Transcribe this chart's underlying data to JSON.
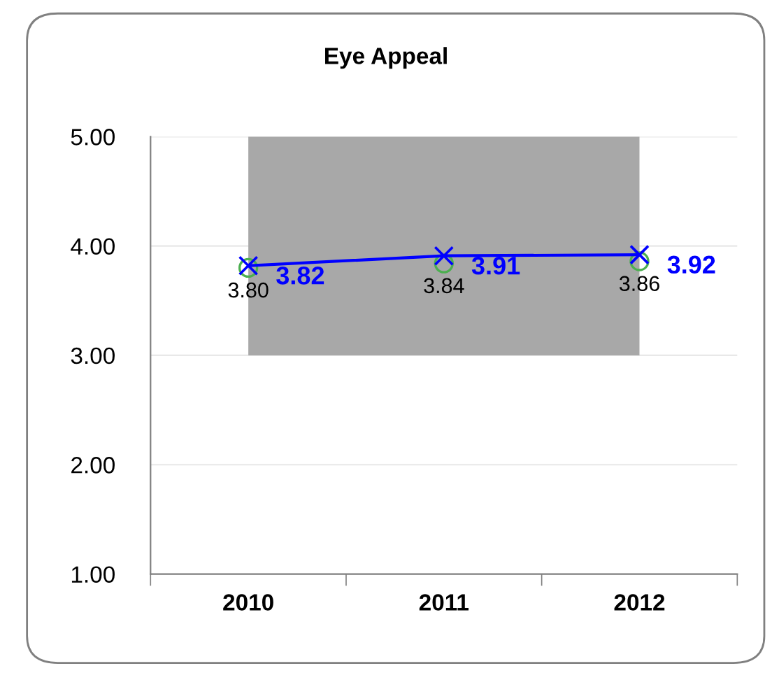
{
  "chart_data": {
    "type": "line",
    "title": "Eye Appeal",
    "categories": [
      "2010",
      "2011",
      "2012"
    ],
    "series": [
      {
        "color": "#0000ff",
        "values": [
          3.82,
          3.91,
          3.92
        ],
        "marker": "cross",
        "value_labels": [
          "3.82",
          "3.91",
          "3.92"
        ]
      },
      {
        "type": "scatter",
        "color": "#4caf50",
        "values": [
          3.8,
          3.84,
          3.86
        ],
        "marker": "circle",
        "value_labels": [
          "3.80",
          "3.84",
          "3.86"
        ]
      }
    ],
    "ylim": [
      1,
      5
    ],
    "yticks": [
      {
        "value": 1,
        "label": "1.00"
      },
      {
        "value": 2,
        "label": "2.00"
      },
      {
        "value": 3,
        "label": "3.00"
      },
      {
        "value": 4,
        "label": "4.00"
      },
      {
        "value": 5,
        "label": "5.00"
      }
    ],
    "grid": "y",
    "legend": false
  }
}
